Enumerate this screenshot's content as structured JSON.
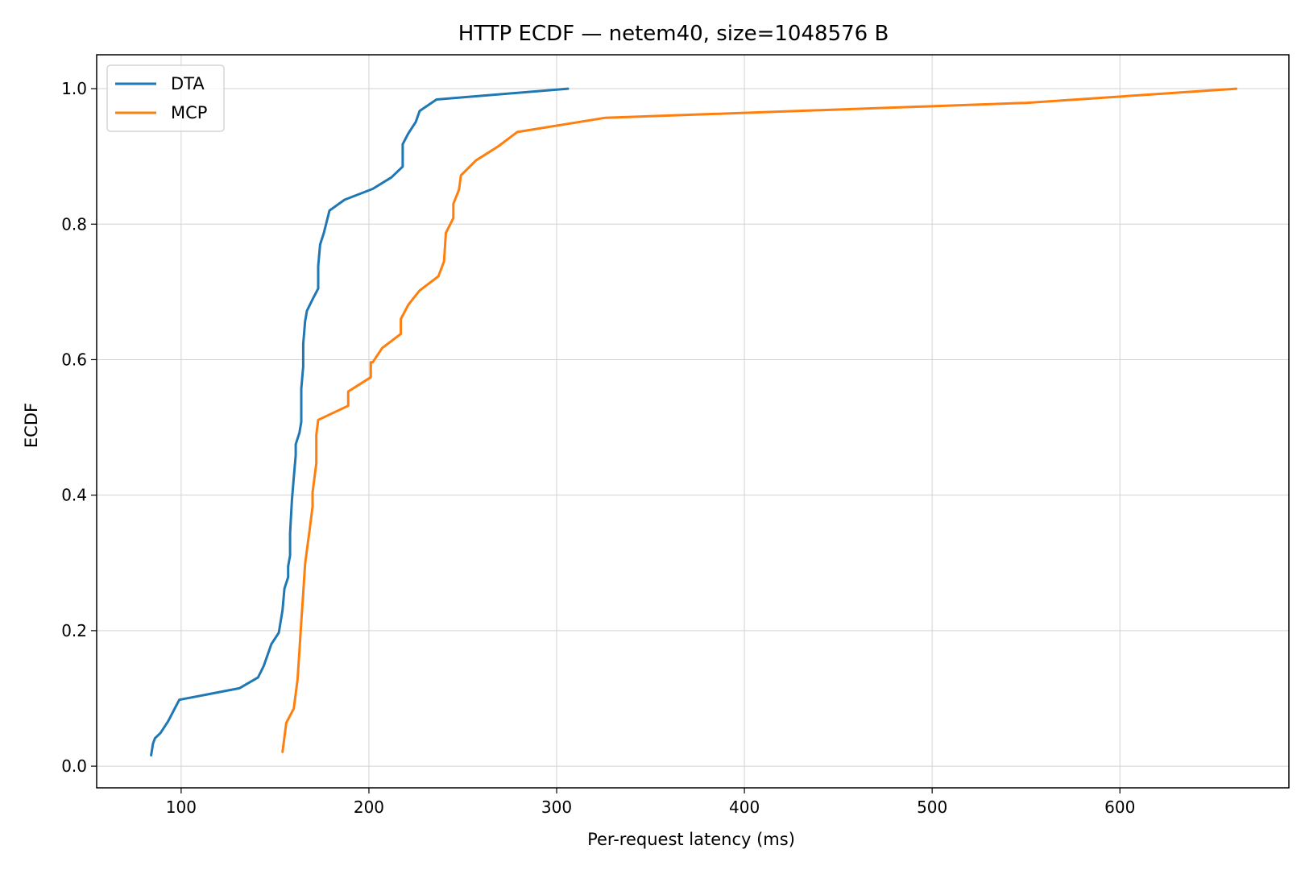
{
  "chart_data": {
    "type": "line",
    "title": "HTTP ECDF — netem40, size=1048576 B",
    "xlabel": "Per-request latency (ms)",
    "ylabel": "ECDF",
    "xlim": [
      55,
      690
    ],
    "ylim": [
      -0.032,
      1.05
    ],
    "xticks": [
      100,
      200,
      300,
      400,
      500,
      600
    ],
    "yticks": [
      0.0,
      0.2,
      0.4,
      0.6,
      0.8,
      1.0
    ],
    "xtick_labels": [
      "100",
      "200",
      "300",
      "400",
      "500",
      "600"
    ],
    "ytick_labels": [
      "0.0",
      "0.2",
      "0.4",
      "0.6",
      "0.8",
      "1.0"
    ],
    "grid": true,
    "legend_position": "top-left",
    "series": [
      {
        "name": "DTA",
        "color": "#1f77b4",
        "x": [
          84,
          85,
          86,
          89,
          93,
          96,
          99,
          131,
          141,
          144,
          146,
          148,
          152,
          154,
          155,
          157,
          157,
          158,
          158,
          159,
          160,
          161,
          161,
          163,
          164,
          164,
          165,
          165,
          166,
          167,
          170,
          173,
          173,
          174,
          176,
          179,
          187,
          202,
          212,
          218,
          218,
          221,
          225,
          227,
          236,
          306
        ],
        "y": [
          0.016,
          0.033,
          0.041,
          0.049,
          0.066,
          0.082,
          0.098,
          0.115,
          0.131,
          0.148,
          0.164,
          0.18,
          0.197,
          0.23,
          0.262,
          0.279,
          0.295,
          0.311,
          0.344,
          0.393,
          0.426,
          0.459,
          0.475,
          0.492,
          0.508,
          0.557,
          0.59,
          0.623,
          0.656,
          0.672,
          0.689,
          0.705,
          0.738,
          0.77,
          0.787,
          0.82,
          0.836,
          0.852,
          0.869,
          0.885,
          0.918,
          0.934,
          0.951,
          0.967,
          0.984,
          1.0
        ]
      },
      {
        "name": "MCP",
        "color": "#ff7f0e",
        "x": [
          154,
          155,
          156,
          160,
          162,
          163,
          164,
          165,
          166,
          167,
          168,
          170,
          170,
          172,
          172,
          173,
          189,
          189,
          201,
          201,
          202,
          207,
          217,
          217,
          221,
          227,
          237,
          240,
          241,
          245,
          245,
          248,
          249,
          257,
          269,
          279,
          326,
          550,
          662
        ],
        "y": [
          0.021,
          0.043,
          0.064,
          0.085,
          0.128,
          0.17,
          0.213,
          0.255,
          0.298,
          0.319,
          0.34,
          0.383,
          0.404,
          0.447,
          0.489,
          0.511,
          0.532,
          0.553,
          0.574,
          0.596,
          0.596,
          0.617,
          0.638,
          0.66,
          0.681,
          0.702,
          0.723,
          0.745,
          0.787,
          0.809,
          0.83,
          0.851,
          0.872,
          0.894,
          0.915,
          0.936,
          0.957,
          0.979,
          1.0
        ]
      }
    ]
  }
}
